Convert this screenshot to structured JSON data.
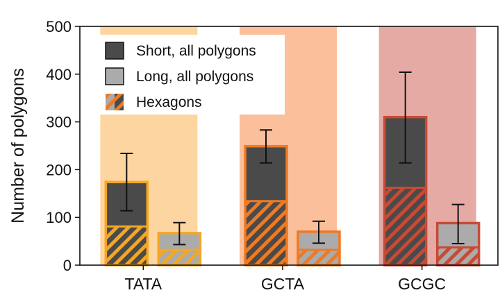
{
  "chart_data": {
    "type": "bar",
    "title": "",
    "xlabel": "",
    "ylabel": "Number of polygons",
    "ylim": [
      0,
      500
    ],
    "yticks": [
      0,
      100,
      200,
      300,
      400,
      500
    ],
    "grid": false,
    "legend_position": "top-left",
    "categories": [
      "TATA",
      "GCTA",
      "GCGC"
    ],
    "category_colors": [
      "#fdd5a0",
      "#fbbf9b",
      "#e6aaa5"
    ],
    "outline_colors": [
      "#f5a623",
      "#f07a23",
      "#c84a35"
    ],
    "series": [
      {
        "name": "Short, all polygons",
        "color": "#4a4a4a",
        "values": [
          174,
          249,
          310
        ],
        "error_low": [
          114,
          214,
          214
        ],
        "error_high": [
          234,
          283,
          404
        ]
      },
      {
        "name": "Long, all polygons",
        "color": "#ababab",
        "values": [
          67,
          70,
          88
        ],
        "error_low": [
          43,
          46,
          45
        ],
        "error_high": [
          89,
          92,
          127
        ]
      }
    ],
    "hexagon_series": {
      "name": "Hexagons",
      "short_values": [
        81,
        134,
        162
      ],
      "long_values": [
        32,
        32,
        37
      ]
    }
  }
}
